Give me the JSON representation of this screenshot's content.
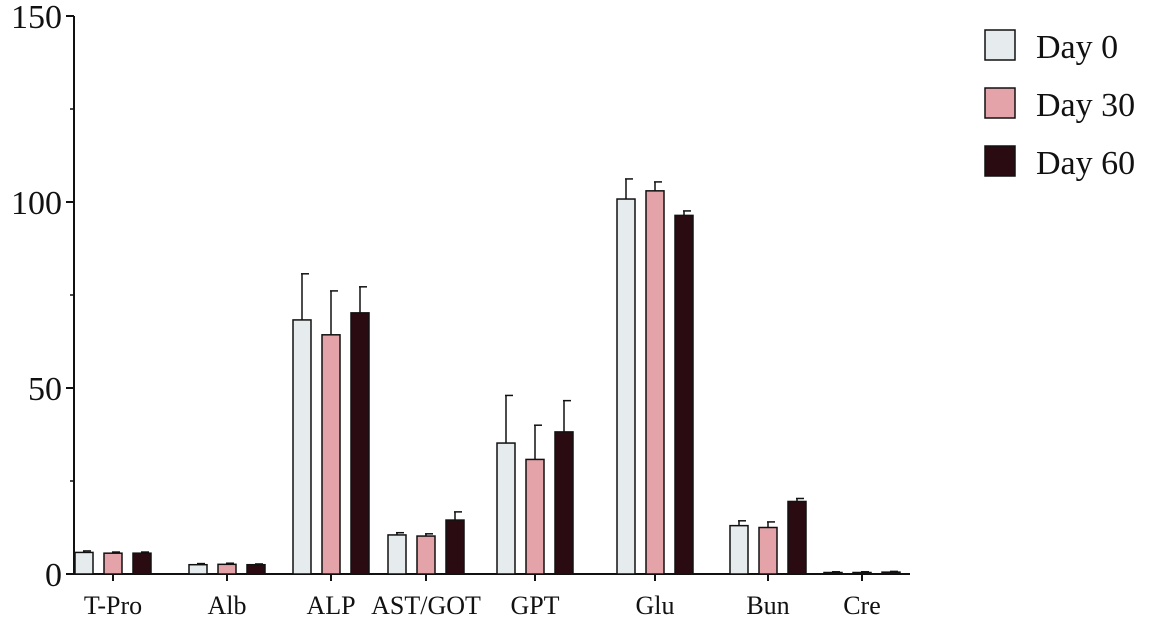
{
  "chart_data": {
    "type": "bar",
    "categories": [
      "T-Pro",
      "Alb",
      "ALP",
      "AST/GOT",
      "GPT",
      "Glu",
      "Bun",
      "Cre"
    ],
    "series": [
      {
        "name": "Day 0",
        "values": [
          5.8,
          2.5,
          68.3,
          10.5,
          35.2,
          100.8,
          13.0,
          0.4
        ],
        "errors": [
          0.4,
          0.3,
          12.4,
          0.6,
          12.8,
          5.4,
          1.3,
          0.2
        ]
      },
      {
        "name": "Day 30",
        "values": [
          5.6,
          2.6,
          64.3,
          10.2,
          30.8,
          103.0,
          12.5,
          0.4
        ],
        "errors": [
          0.3,
          0.3,
          11.8,
          0.6,
          9.2,
          2.4,
          1.5,
          0.2
        ]
      },
      {
        "name": "Day 60",
        "values": [
          5.6,
          2.5,
          70.2,
          14.5,
          38.2,
          96.4,
          19.5,
          0.5
        ],
        "errors": [
          0.3,
          0.2,
          7.0,
          2.2,
          8.4,
          1.2,
          0.8,
          0.2
        ]
      }
    ],
    "colors": [
      "#e6ecee",
      "#e3a3a9",
      "#2a0b12"
    ],
    "ylim": [
      0,
      150
    ],
    "yticks": [
      0,
      50,
      100,
      150
    ],
    "xlabel": "",
    "ylabel": "",
    "title": "",
    "legend": "top-right",
    "grid": false
  }
}
